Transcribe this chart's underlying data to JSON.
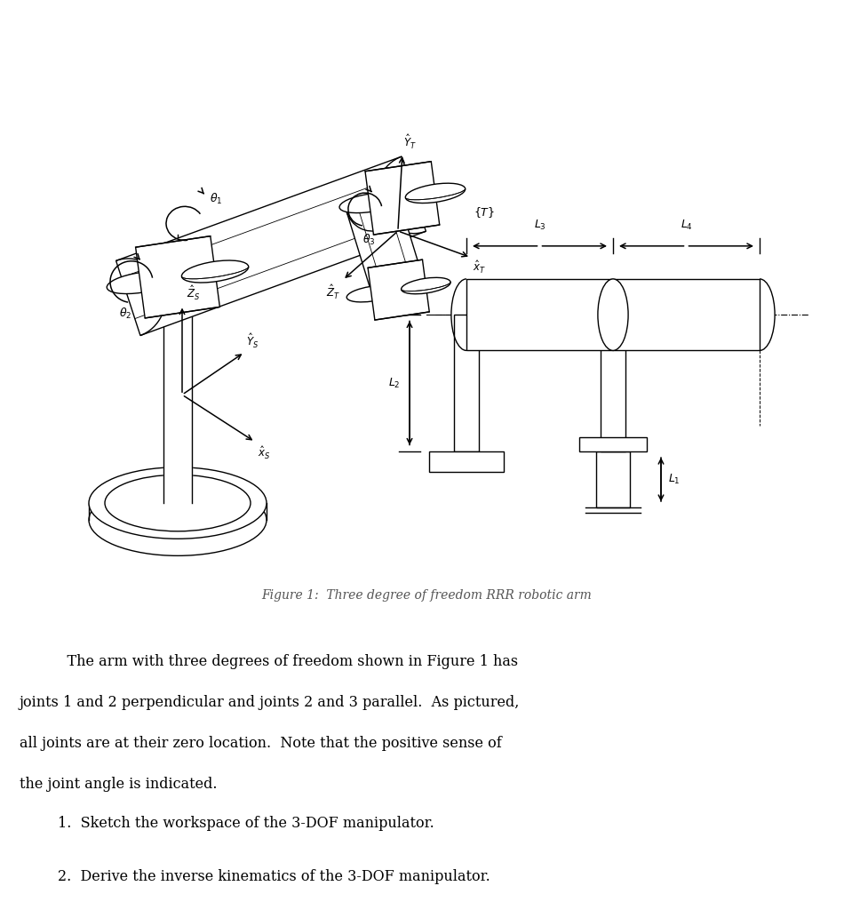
{
  "fig_width": 9.59,
  "fig_height": 10.24,
  "dpi": 100,
  "figure_caption": "Figure 1:  Three degree of freedom RRR robotic arm",
  "para_line1": "    The arm with three degrees of freedom shown in Figure 1 has",
  "para_line2": "joints 1 and 2 perpendicular and joints 2 and 3 parallel.  As pictured,",
  "para_line3": "all joints are at their zero location.  Note that the positive sense of",
  "para_line4": "the joint angle is indicated.",
  "item1": "1.  Sketch the workspace of the 3-DOF manipulator.",
  "item2": "2.  Derive the inverse kinematics of the 3-DOF manipulator.",
  "caption_color": "#555555",
  "text_color": "#111111"
}
